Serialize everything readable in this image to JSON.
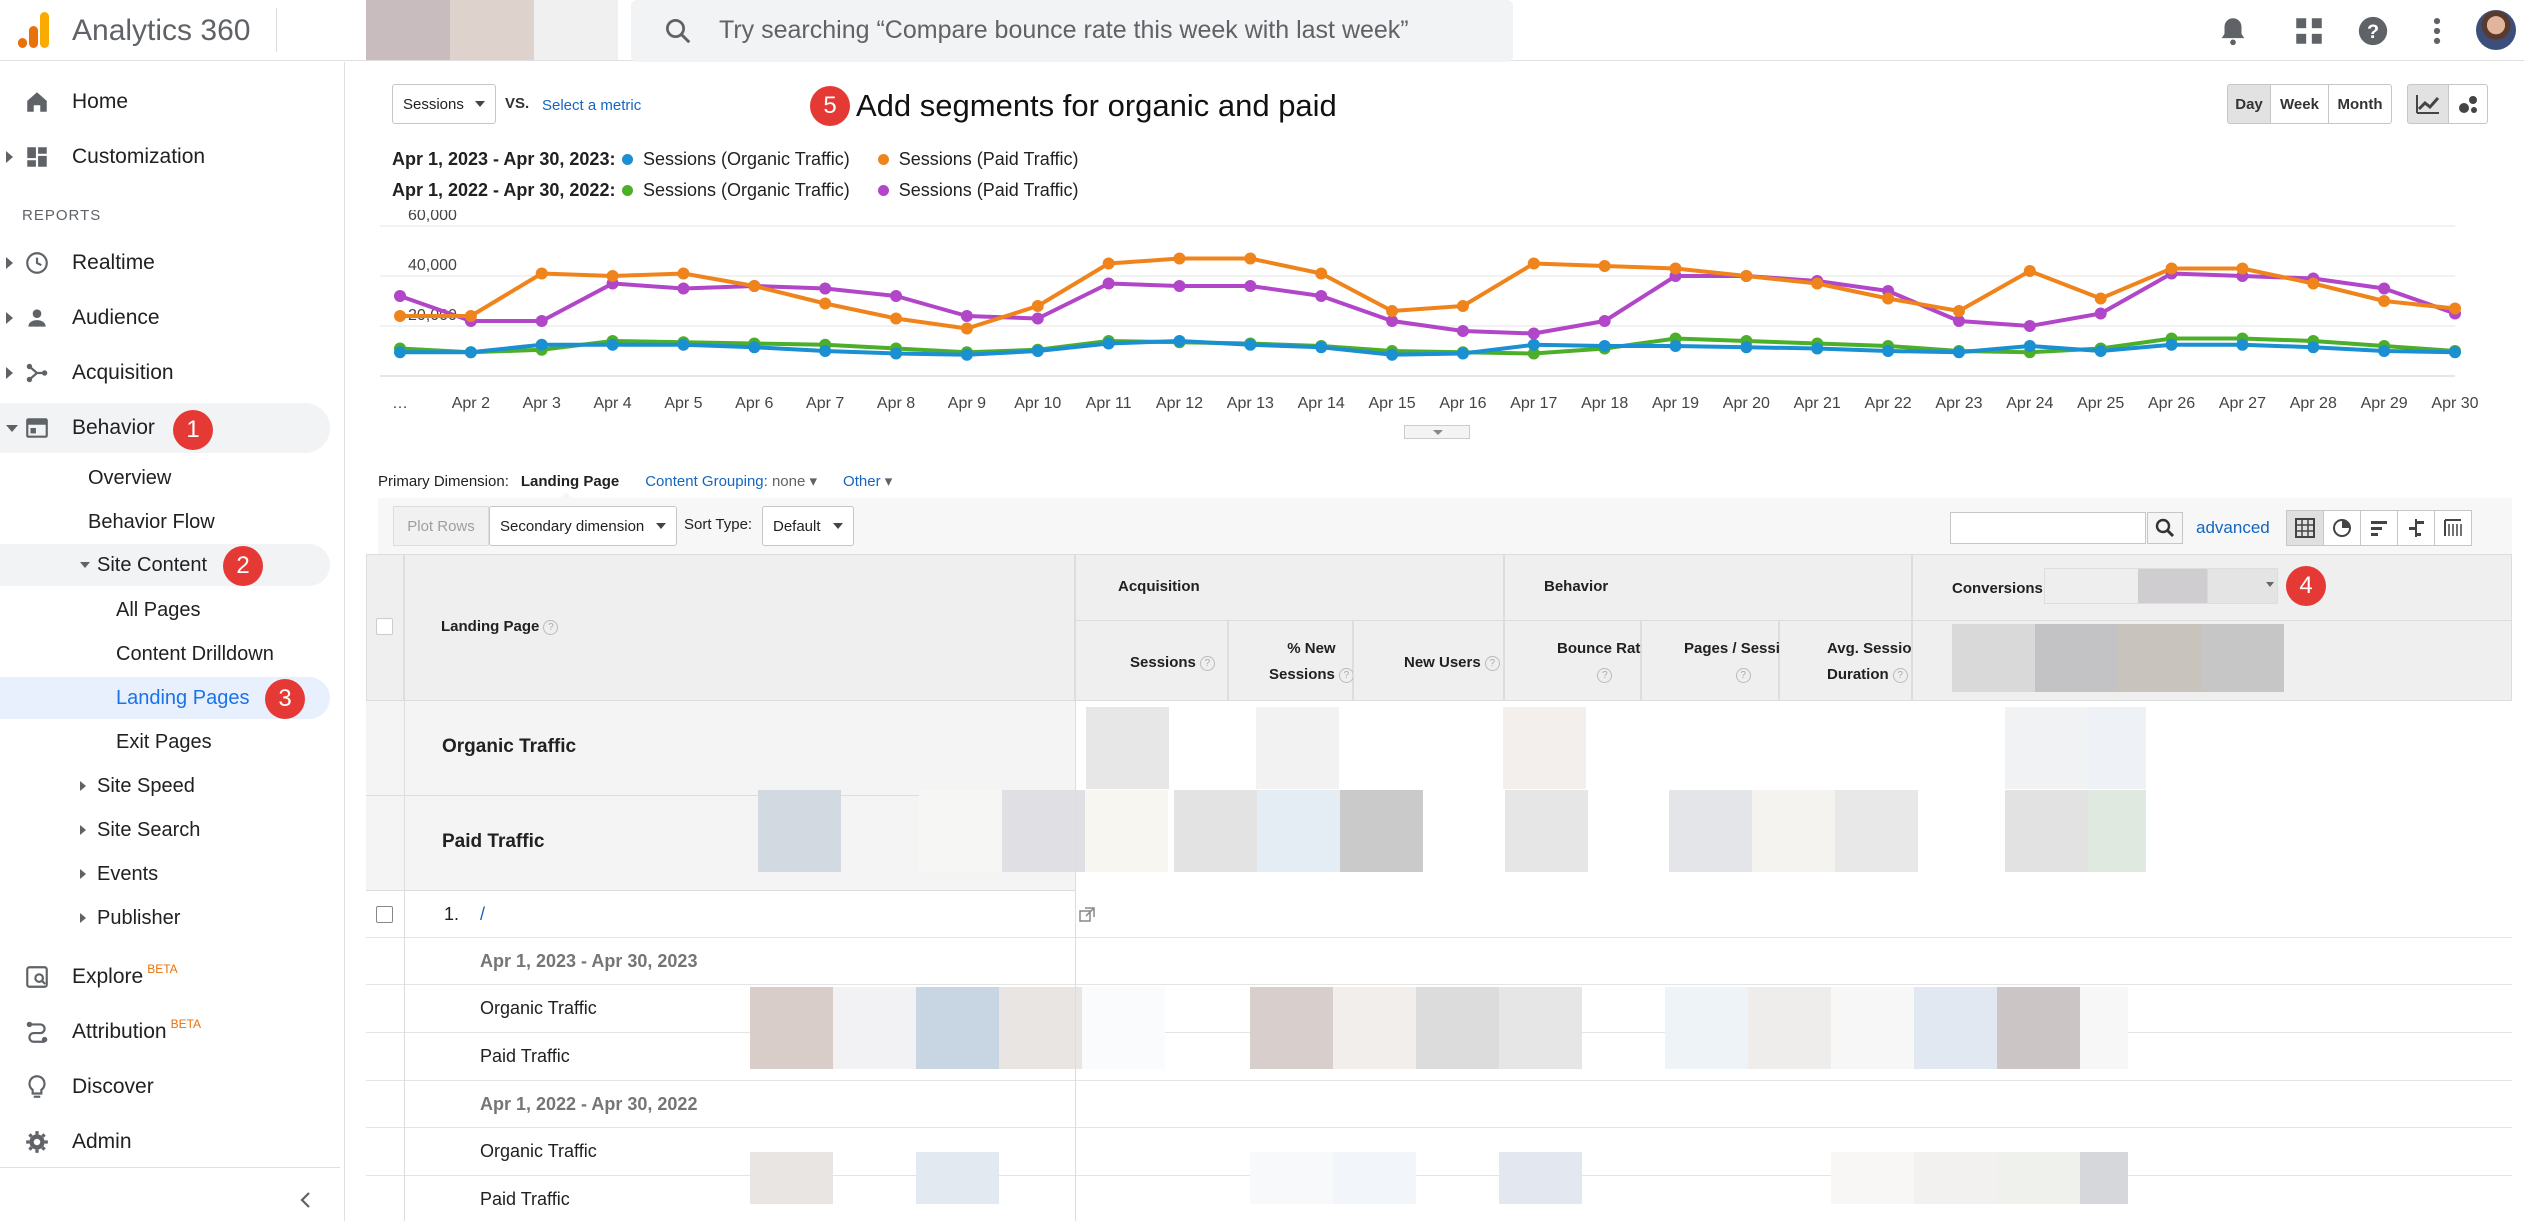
{
  "app": {
    "title": "Analytics 360",
    "search_placeholder": "Try searching “Compare bounce rate this week with last week”"
  },
  "colors": {
    "accent": "#1565c0",
    "badge": "#e53935",
    "organic_2023": "#1a8fd1",
    "paid_2023": "#f0841c",
    "organic_2022": "#4caf2a",
    "paid_2022": "#b146c8"
  },
  "sidebar": {
    "reports_heading": "REPORTS",
    "items": [
      {
        "label": "Home",
        "icon": "home-icon"
      },
      {
        "label": "Customization",
        "icon": "dashboard-icon"
      },
      {
        "label": "Realtime",
        "icon": "clock-icon"
      },
      {
        "label": "Audience",
        "icon": "person-icon"
      },
      {
        "label": "Acquisition",
        "icon": "acquisition-icon"
      },
      {
        "label": "Behavior",
        "icon": "behavior-icon"
      }
    ],
    "behavior_sub": [
      "Overview",
      "Behavior Flow",
      "Site Content"
    ],
    "site_content_sub": [
      "All Pages",
      "Content Drilldown",
      "Landing Pages",
      "Exit Pages"
    ],
    "behavior_more": [
      "Site Speed",
      "Site Search",
      "Events",
      "Publisher"
    ],
    "bottom": [
      {
        "label": "Explore",
        "icon": "explore-icon",
        "beta": "BETA"
      },
      {
        "label": "Attribution",
        "icon": "attribution-icon",
        "beta": "BETA"
      },
      {
        "label": "Discover",
        "icon": "lightbulb-icon"
      },
      {
        "label": "Admin",
        "icon": "gear-icon"
      }
    ]
  },
  "badges": [
    "1",
    "2",
    "3",
    "4",
    "5"
  ],
  "controls": {
    "metric": "Sessions",
    "vs": "VS.",
    "select_metric": "Select a metric",
    "annotation": "Add segments for organic and paid",
    "day": "Day",
    "week": "Week",
    "month": "Month"
  },
  "legend": [
    {
      "range": "Apr 1, 2023 - Apr 30, 2023:",
      "items": [
        "Sessions (Organic Traffic)",
        "Sessions (Paid Traffic)"
      ]
    },
    {
      "range": "Apr 1, 2022 - Apr 30, 2022:",
      "items": [
        "Sessions (Organic Traffic)",
        "Sessions (Paid Traffic)"
      ]
    }
  ],
  "chart_data": {
    "type": "line",
    "ylim": [
      0,
      60000
    ],
    "yticks": [
      "20,000",
      "40,000",
      "60,000"
    ],
    "x": [
      "…",
      "Apr 2",
      "Apr 3",
      "Apr 4",
      "Apr 5",
      "Apr 6",
      "Apr 7",
      "Apr 8",
      "Apr 9",
      "Apr 10",
      "Apr 11",
      "Apr 12",
      "Apr 13",
      "Apr 14",
      "Apr 15",
      "Apr 16",
      "Apr 17",
      "Apr 18",
      "Apr 19",
      "Apr 20",
      "Apr 21",
      "Apr 22",
      "Apr 23",
      "Apr 24",
      "Apr 25",
      "Apr 26",
      "Apr 27",
      "Apr 28",
      "Apr 29",
      "Apr 30"
    ],
    "series": [
      {
        "name": "Sessions (Paid Traffic) 2022",
        "color": "#b146c8",
        "values": [
          32000,
          22000,
          22000,
          37000,
          35000,
          36000,
          35000,
          32000,
          24000,
          23000,
          37000,
          36000,
          36000,
          32000,
          22000,
          18000,
          17000,
          22000,
          40000,
          40000,
          38000,
          34000,
          22000,
          20000,
          25000,
          41000,
          40000,
          39000,
          35000,
          25000
        ]
      },
      {
        "name": "Sessions (Paid Traffic) 2023",
        "color": "#f0841c",
        "values": [
          24000,
          24000,
          41000,
          40000,
          41000,
          36000,
          29000,
          23000,
          19000,
          28000,
          45000,
          47000,
          47000,
          41000,
          26000,
          28000,
          45000,
          44000,
          43000,
          40000,
          37000,
          31000,
          26000,
          42000,
          31000,
          43000,
          43000,
          37000,
          30000,
          27000
        ]
      },
      {
        "name": "Sessions (Organic Traffic) 2022",
        "color": "#4caf2a",
        "values": [
          11000,
          9500,
          10500,
          14000,
          13500,
          13000,
          12500,
          11000,
          9500,
          10500,
          14000,
          13500,
          13000,
          12000,
          10000,
          9500,
          9000,
          11000,
          15000,
          14000,
          13000,
          12000,
          10000,
          9500,
          11000,
          15000,
          15000,
          14000,
          12000,
          10000
        ]
      },
      {
        "name": "Sessions (Organic Traffic) 2023",
        "color": "#1a8fd1",
        "values": [
          9500,
          9500,
          12500,
          12500,
          12500,
          11500,
          10000,
          9000,
          8500,
          10000,
          13000,
          14000,
          12500,
          11500,
          8500,
          9000,
          12500,
          12000,
          12000,
          11500,
          11000,
          10000,
          9500,
          12000,
          10000,
          12500,
          12500,
          11500,
          10000,
          9500
        ]
      }
    ]
  },
  "table": {
    "primary_dimension_label": "Primary Dimension:",
    "primary_dimension_value": "Landing Page",
    "content_grouping_label": "Content Grouping:",
    "content_grouping_value": "none",
    "other": "Other",
    "plot_rows": "Plot Rows",
    "secondary_dimension": "Secondary dimension",
    "sort_type_label": "Sort Type:",
    "sort_type_value": "Default",
    "advanced": "advanced",
    "landing_page_header": "Landing Page",
    "group_acquisition": "Acquisition",
    "group_behavior": "Behavior",
    "group_conversions": "Conversions",
    "columns": {
      "sessions": "Sessions",
      "new_sessions_a": "% New",
      "new_sessions_b": "Sessions",
      "new_users": "New Users",
      "bounce_rate": "Bounce Rate",
      "pages_session": "Pages / Session",
      "avg_a": "Avg. Session",
      "avg_b": "Duration"
    },
    "segments": [
      "Organic Traffic",
      "Paid Traffic"
    ],
    "row_index": "1.",
    "row_page": "/",
    "sub_rows": [
      {
        "label": "Apr 1, 2023 - Apr 30, 2023",
        "type": "date"
      },
      {
        "label": "Organic Traffic",
        "type": "seg"
      },
      {
        "label": "Paid Traffic",
        "type": "seg"
      },
      {
        "label": "Apr 1, 2022 - Apr 30, 2022",
        "type": "date"
      },
      {
        "label": "Organic Traffic",
        "type": "seg"
      },
      {
        "label": "Paid Traffic",
        "type": "seg"
      }
    ]
  }
}
